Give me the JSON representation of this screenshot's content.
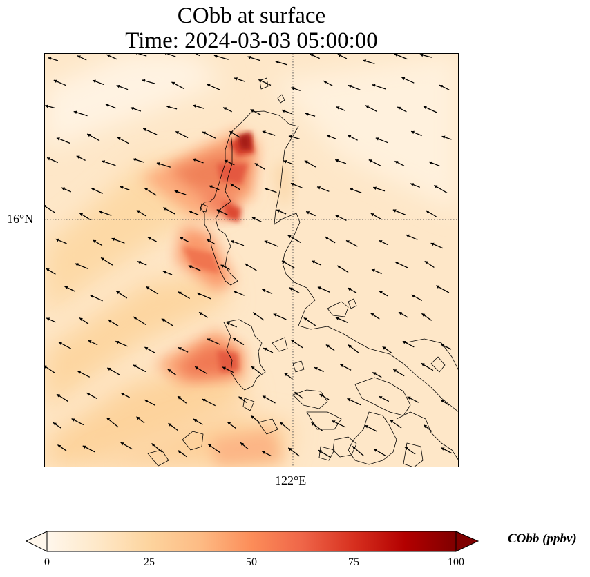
{
  "title": {
    "line1": "CObb at surface",
    "line2": "Time: 2024-03-03 05:00:00"
  },
  "axes": {
    "lat_tick": "16°N",
    "lon_tick": "122°E"
  },
  "colorbar": {
    "label": "CObb (ppbv)",
    "ticks": [
      "0",
      "25",
      "50",
      "75",
      "100"
    ],
    "min": 0,
    "max": 100,
    "extend": "both",
    "colormap": "OrRd",
    "colors": [
      "#fff7ec",
      "#fee8c8",
      "#fdd49e",
      "#fdbb84",
      "#fc8d59",
      "#ef6548",
      "#d7301f",
      "#b30000",
      "#7f0000"
    ]
  },
  "map": {
    "variable": "CObb",
    "units": "ppbv",
    "wind_vectors": true,
    "coastlines": true,
    "gridlines": "dotted"
  }
}
